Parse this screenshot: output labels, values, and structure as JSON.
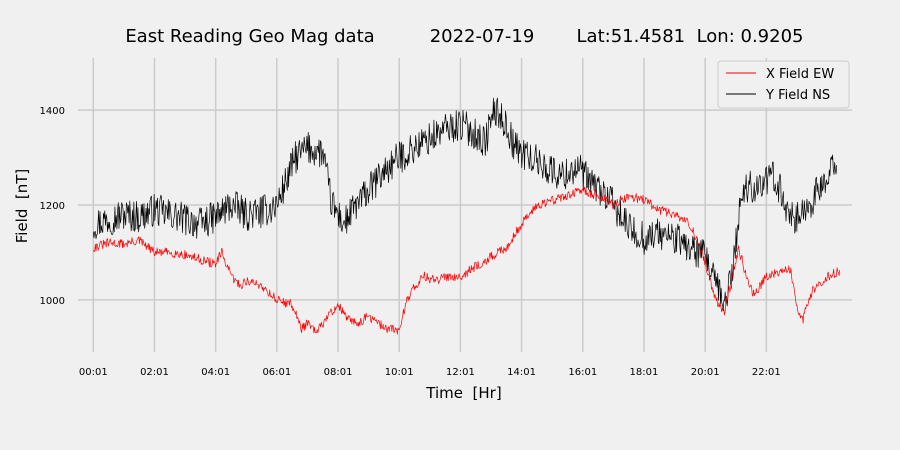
{
  "chart_data": {
    "type": "line",
    "title_parts": [
      "East Reading Geo Mag data",
      "2022-07-19",
      "Lat:51.4581  Lon: 0.9205"
    ],
    "xlabel": "Time  [Hr]",
    "ylabel": "Field  [nT]",
    "x_ticks": [
      "00:01",
      "02:01",
      "04:01",
      "06:01",
      "08:01",
      "10:01",
      "12:01",
      "14:01",
      "16:01",
      "18:01",
      "20:01",
      "22:01"
    ],
    "y_ticks": [
      1000,
      1200,
      1400
    ],
    "xlim": [
      -0.5,
      24.8
    ],
    "ylim": [
      890,
      1510
    ],
    "grid": true,
    "legend_position": "top-right",
    "legend_entries": [
      "X Field EW",
      "Y Field NS"
    ],
    "colors": {
      "background": "#f0f0f0",
      "grid": "#cbcbcb",
      "x_field": "#ff0000",
      "y_field": "#000000"
    },
    "series": [
      {
        "name": "X Field EW",
        "color": "#ff0000",
        "noise": 10,
        "points": [
          [
            0,
            1110
          ],
          [
            0.5,
            1120
          ],
          [
            1,
            1118
          ],
          [
            1.5,
            1125
          ],
          [
            2,
            1100
          ],
          [
            2.5,
            1100
          ],
          [
            3,
            1095
          ],
          [
            3.5,
            1085
          ],
          [
            4,
            1075
          ],
          [
            4.2,
            1100
          ],
          [
            4.5,
            1050
          ],
          [
            4.8,
            1030
          ],
          [
            5,
            1040
          ],
          [
            5.5,
            1030
          ],
          [
            6,
            1000
          ],
          [
            6.5,
            990
          ],
          [
            6.8,
            940
          ],
          [
            7,
            950
          ],
          [
            7.3,
            930
          ],
          [
            7.6,
            960
          ],
          [
            8,
            990
          ],
          [
            8.3,
            960
          ],
          [
            8.6,
            950
          ],
          [
            9,
            965
          ],
          [
            9.3,
            950
          ],
          [
            9.6,
            940
          ],
          [
            10,
            935
          ],
          [
            10.2,
            990
          ],
          [
            10.4,
            1020
          ],
          [
            10.8,
            1050
          ],
          [
            11.2,
            1040
          ],
          [
            11.6,
            1050
          ],
          [
            12,
            1050
          ],
          [
            12.5,
            1070
          ],
          [
            13,
            1090
          ],
          [
            13.5,
            1110
          ],
          [
            14,
            1160
          ],
          [
            14.5,
            1200
          ],
          [
            15,
            1210
          ],
          [
            15.5,
            1220
          ],
          [
            16,
            1230
          ],
          [
            16.5,
            1220
          ],
          [
            17,
            1200
          ],
          [
            17.5,
            1220
          ],
          [
            18,
            1210
          ],
          [
            18.5,
            1190
          ],
          [
            19,
            1180
          ],
          [
            19.5,
            1160
          ],
          [
            20,
            1080
          ],
          [
            20.3,
            1010
          ],
          [
            20.6,
            970
          ],
          [
            20.9,
            1050
          ],
          [
            21.1,
            1110
          ],
          [
            21.3,
            1060
          ],
          [
            21.6,
            1010
          ],
          [
            22,
            1050
          ],
          [
            22.4,
            1060
          ],
          [
            22.8,
            1065
          ],
          [
            23,
            980
          ],
          [
            23.2,
            960
          ],
          [
            23.5,
            1020
          ],
          [
            24,
            1050
          ],
          [
            24.4,
            1060
          ]
        ]
      },
      {
        "name": "Y Field NS",
        "color": "#000000",
        "noise": 35,
        "points": [
          [
            0,
            1160
          ],
          [
            0.5,
            1170
          ],
          [
            1,
            1180
          ],
          [
            1.5,
            1175
          ],
          [
            2,
            1190
          ],
          [
            2.5,
            1180
          ],
          [
            3,
            1170
          ],
          [
            3.5,
            1160
          ],
          [
            4,
            1175
          ],
          [
            4.5,
            1200
          ],
          [
            5,
            1180
          ],
          [
            5.5,
            1185
          ],
          [
            6,
            1200
          ],
          [
            6.3,
            1250
          ],
          [
            6.6,
            1300
          ],
          [
            7,
            1320
          ],
          [
            7.5,
            1310
          ],
          [
            7.8,
            1200
          ],
          [
            8.2,
            1160
          ],
          [
            8.6,
            1200
          ],
          [
            9,
            1230
          ],
          [
            9.5,
            1270
          ],
          [
            10,
            1300
          ],
          [
            10.5,
            1320
          ],
          [
            11,
            1340
          ],
          [
            11.5,
            1360
          ],
          [
            12,
            1370
          ],
          [
            12.5,
            1350
          ],
          [
            12.8,
            1330
          ],
          [
            13.1,
            1400
          ],
          [
            13.4,
            1380
          ],
          [
            13.8,
            1320
          ],
          [
            14.3,
            1300
          ],
          [
            14.8,
            1280
          ],
          [
            15.3,
            1260
          ],
          [
            15.8,
            1280
          ],
          [
            16.2,
            1250
          ],
          [
            16.6,
            1230
          ],
          [
            17,
            1200
          ],
          [
            17.5,
            1150
          ],
          [
            18,
            1130
          ],
          [
            18.5,
            1140
          ],
          [
            19,
            1130
          ],
          [
            19.5,
            1110
          ],
          [
            20,
            1090
          ],
          [
            20.3,
            1040
          ],
          [
            20.6,
            990
          ],
          [
            20.9,
            1060
          ],
          [
            21.2,
            1230
          ],
          [
            21.6,
            1240
          ],
          [
            22,
            1250
          ],
          [
            22.3,
            1260
          ],
          [
            22.6,
            1200
          ],
          [
            23,
            1170
          ],
          [
            23.3,
            1190
          ],
          [
            23.7,
            1230
          ],
          [
            24,
            1250
          ],
          [
            24.3,
            1300
          ]
        ]
      }
    ]
  }
}
